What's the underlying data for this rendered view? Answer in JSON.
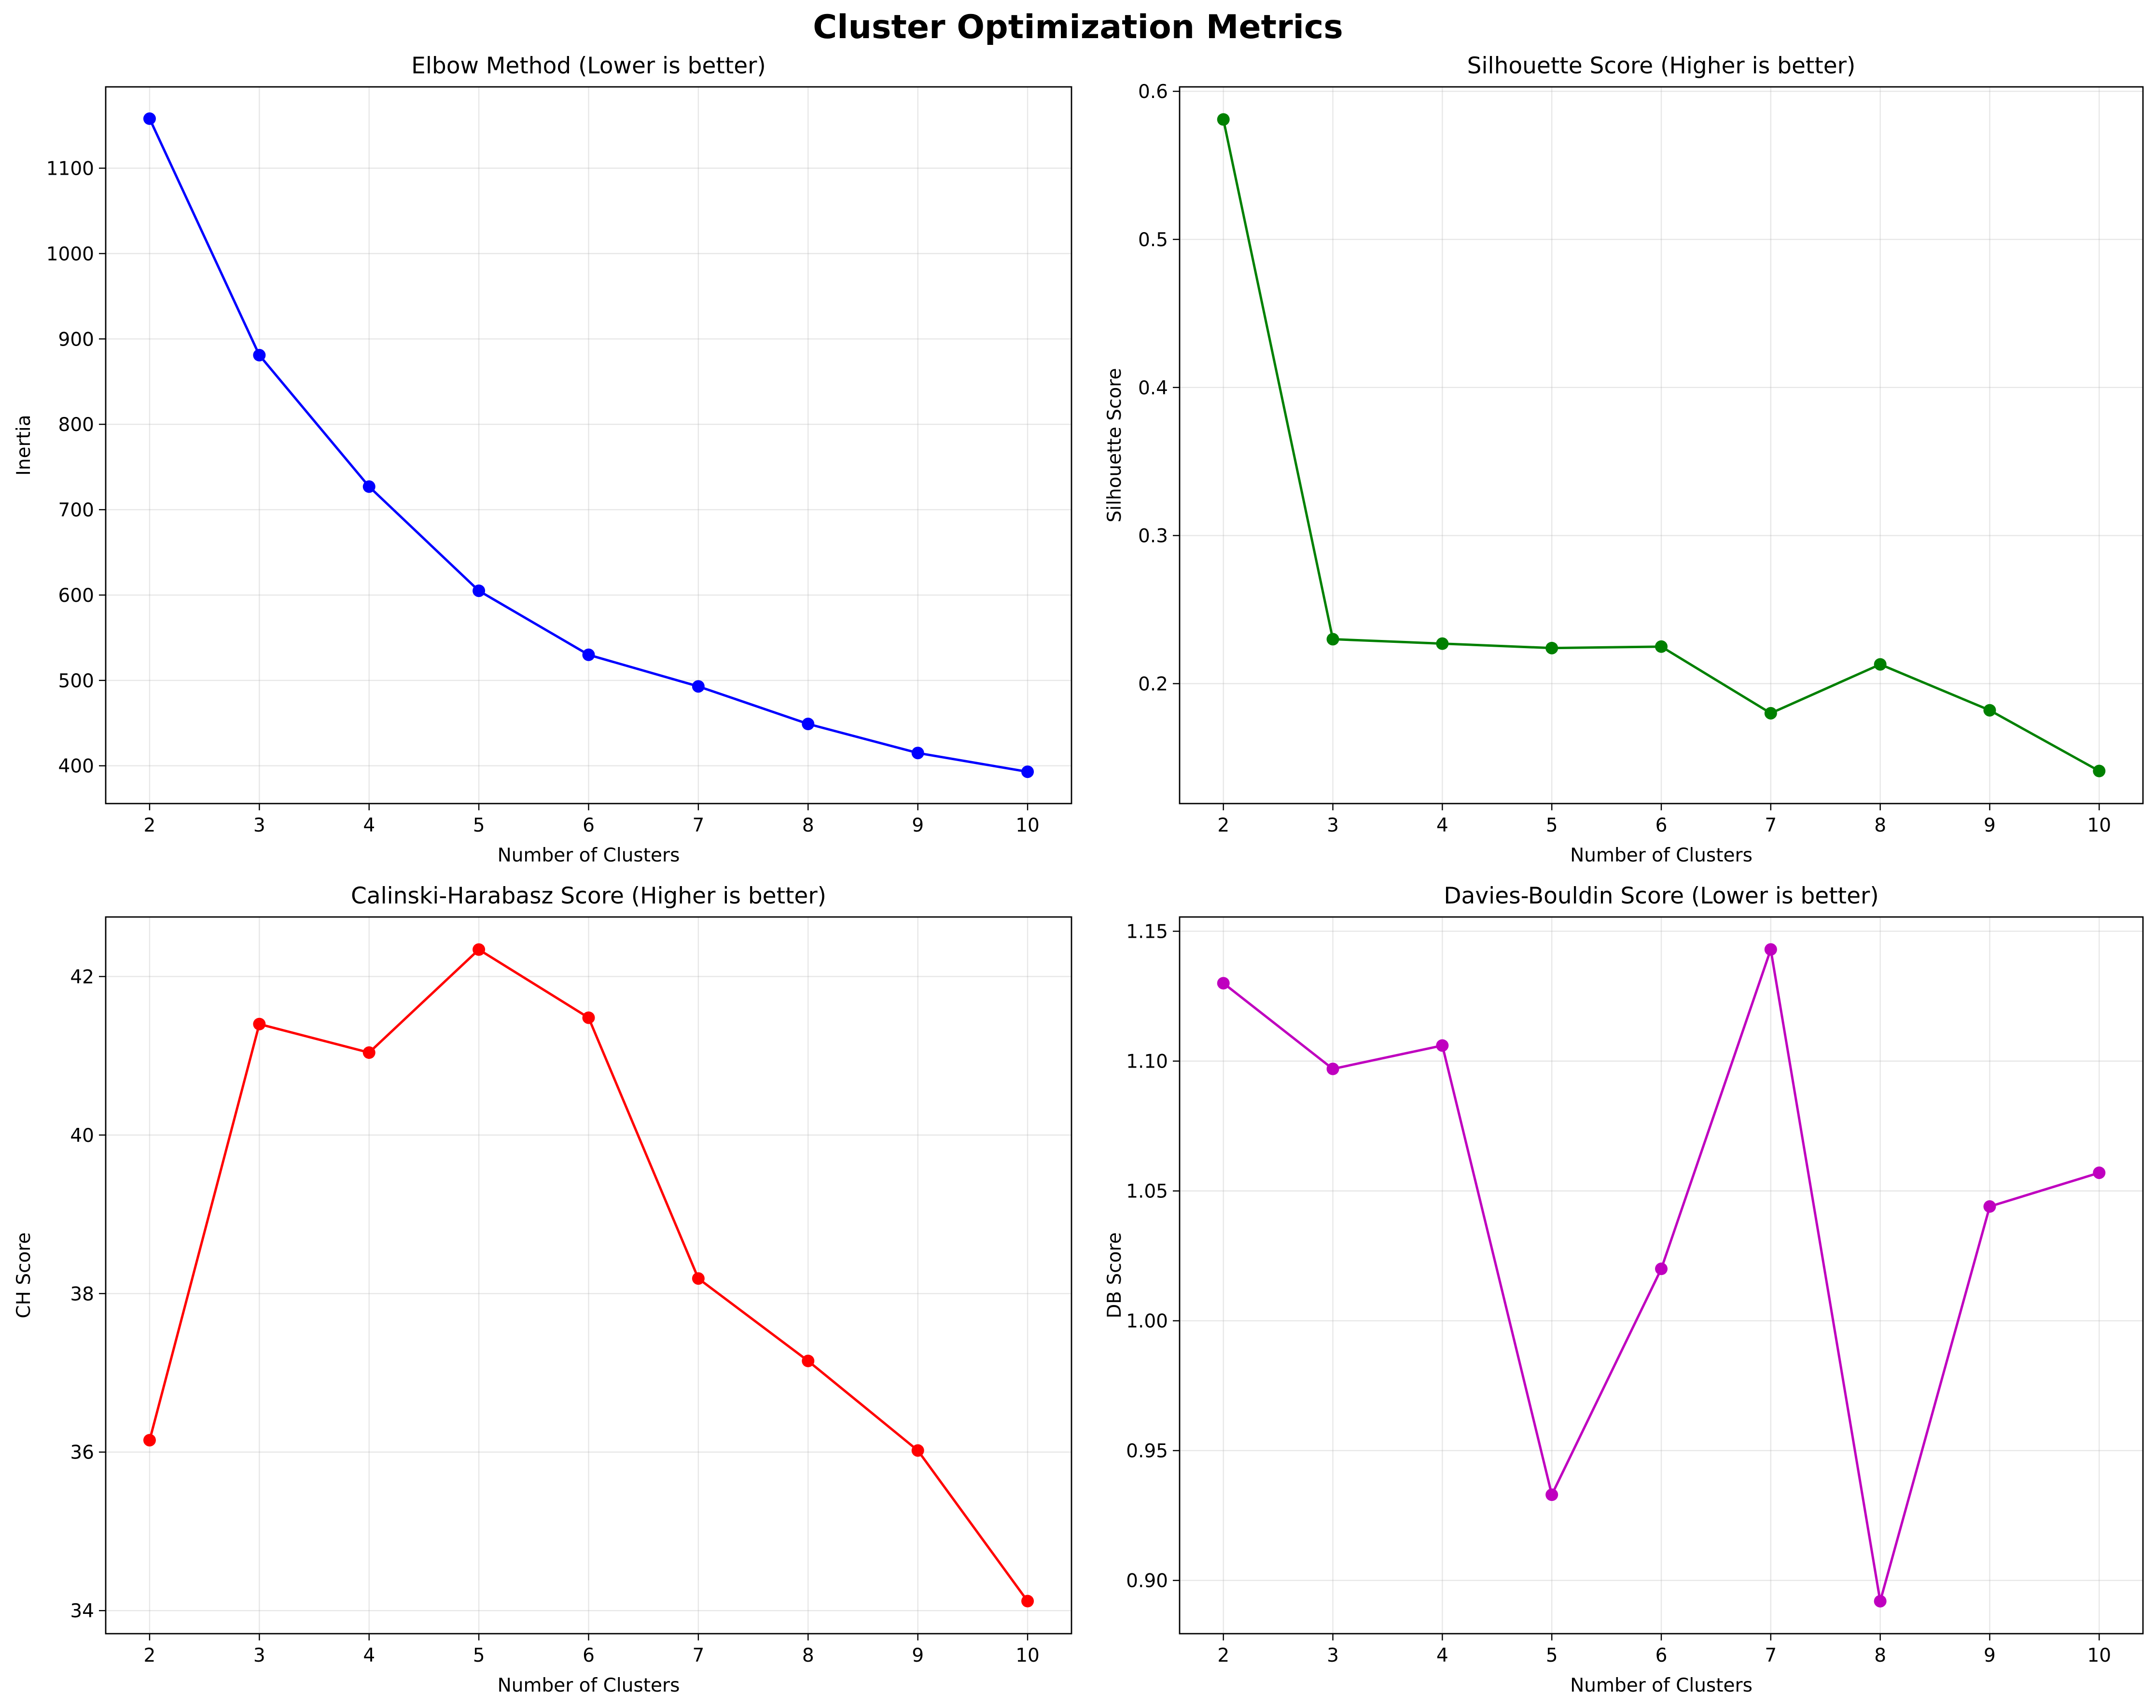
{
  "figure": {
    "title": "Cluster Optimization Metrics"
  },
  "chart_data": [
    {
      "type": "line",
      "title": "Elbow Method (Lower is better)",
      "xlabel": "Number of Clusters",
      "ylabel": "Inertia",
      "x": [
        2,
        3,
        4,
        5,
        6,
        7,
        8,
        9,
        10
      ],
      "series": [
        {
          "values": [
            1158,
            881,
            727,
            605,
            530,
            493,
            449,
            415,
            393
          ],
          "color": "#0000ff"
        }
      ],
      "xticks": [
        2,
        3,
        4,
        5,
        6,
        7,
        8,
        9,
        10
      ],
      "yticks": [
        400,
        500,
        600,
        700,
        800,
        900,
        1000,
        1100
      ],
      "ytick_labels": [
        "400",
        "500",
        "600",
        "700",
        "800",
        "900",
        "1000",
        "1100"
      ],
      "xlim": [
        1.6,
        10.4
      ],
      "ylim": [
        355.75,
        1195.25
      ],
      "grid": true,
      "marker": "circle"
    },
    {
      "type": "line",
      "title": "Silhouette Score (Higher is better)",
      "xlabel": "Number of Clusters",
      "ylabel": "Silhouette Score",
      "x": [
        2,
        3,
        4,
        5,
        6,
        7,
        8,
        9,
        10
      ],
      "series": [
        {
          "values": [
            0.581,
            0.23,
            0.227,
            0.224,
            0.225,
            0.18,
            0.213,
            0.182,
            0.141
          ],
          "color": "#008000"
        }
      ],
      "xticks": [
        2,
        3,
        4,
        5,
        6,
        7,
        8,
        9,
        10
      ],
      "yticks": [
        0.2,
        0.3,
        0.4,
        0.5,
        0.6
      ],
      "ytick_labels": [
        "0.2",
        "0.3",
        "0.4",
        "0.5",
        "0.6"
      ],
      "xlim": [
        1.6,
        10.4
      ],
      "ylim": [
        0.119,
        0.603
      ],
      "grid": true,
      "marker": "circle"
    },
    {
      "type": "line",
      "title": "Calinski-Harabasz Score (Higher is better)",
      "xlabel": "Number of Clusters",
      "ylabel": "CH Score",
      "x": [
        2,
        3,
        4,
        5,
        6,
        7,
        8,
        9,
        10
      ],
      "series": [
        {
          "values": [
            36.15,
            41.4,
            41.04,
            42.34,
            41.48,
            38.19,
            37.15,
            36.02,
            34.12
          ],
          "color": "#ff0000"
        }
      ],
      "xticks": [
        2,
        3,
        4,
        5,
        6,
        7,
        8,
        9,
        10
      ],
      "yticks": [
        34,
        36,
        38,
        40,
        42
      ],
      "ytick_labels": [
        "34",
        "36",
        "38",
        "40",
        "42"
      ],
      "xlim": [
        1.6,
        10.4
      ],
      "ylim": [
        33.709,
        42.751
      ],
      "grid": true,
      "marker": "circle"
    },
    {
      "type": "line",
      "title": "Davies-Bouldin Score (Lower is better)",
      "xlabel": "Number of Clusters",
      "ylabel": "DB Score",
      "x": [
        2,
        3,
        4,
        5,
        6,
        7,
        8,
        9,
        10
      ],
      "series": [
        {
          "values": [
            1.13,
            1.097,
            1.106,
            0.933,
            1.02,
            1.143,
            0.892,
            1.044,
            1.057
          ],
          "color": "#bf00bf"
        }
      ],
      "xticks": [
        2,
        3,
        4,
        5,
        6,
        7,
        8,
        9,
        10
      ],
      "yticks": [
        0.9,
        0.95,
        1.0,
        1.05,
        1.1,
        1.15
      ],
      "ytick_labels": [
        "0.90",
        "0.95",
        "1.00",
        "1.05",
        "1.10",
        "1.15"
      ],
      "xlim": [
        1.6,
        10.4
      ],
      "ylim": [
        0.8795,
        1.1555
      ],
      "grid": true,
      "marker": "circle"
    }
  ]
}
